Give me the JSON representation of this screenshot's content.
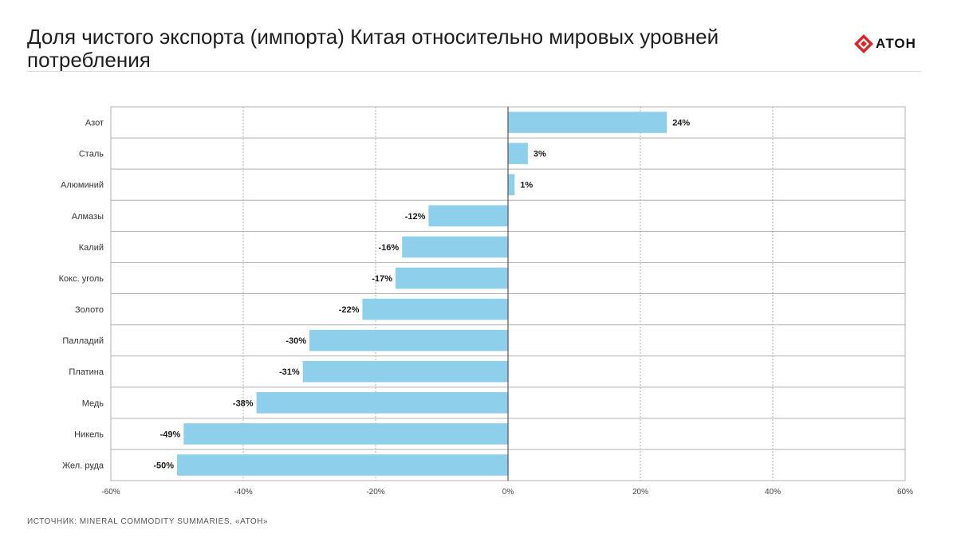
{
  "header": {
    "title": "Доля чистого экспорта (импорта) Китая относительно мировых уровней потребления",
    "logo_text": "АТОН"
  },
  "footer": {
    "source": "ИСТОЧНИК: MINERAL COMMODITY SUMMARIES, «АТОН»"
  },
  "colors": {
    "bar": "#8ecfeb",
    "logo_red": "#d9262b",
    "grid": "#b0b0b0",
    "zero_line": "#555555"
  },
  "chart_data": {
    "type": "bar",
    "orientation": "horizontal",
    "categories": [
      "Азот",
      "Сталь",
      "Алюминий",
      "Алмазы",
      "Калий",
      "Кокс. уголь",
      "Золото",
      "Палладий",
      "Платина",
      "Медь",
      "Никель",
      "Жел. руда"
    ],
    "values": [
      24,
      3,
      1,
      -12,
      -16,
      -17,
      -22,
      -30,
      -31,
      -38,
      -49,
      -50
    ],
    "data_labels": [
      "24%",
      "3%",
      "1%",
      "-12%",
      "-16%",
      "-17%",
      "-22%",
      "-30%",
      "-31%",
      "-38%",
      "-49%",
      "-50%"
    ],
    "xlim": [
      -60,
      60
    ],
    "x_ticks": [
      -60,
      -40,
      -20,
      0,
      20,
      40,
      60
    ],
    "x_tick_labels": [
      "-60%",
      "-40%",
      "-20%",
      "0%",
      "20%",
      "40%",
      "60%"
    ],
    "grid": true,
    "xlabel": "",
    "ylabel": ""
  }
}
